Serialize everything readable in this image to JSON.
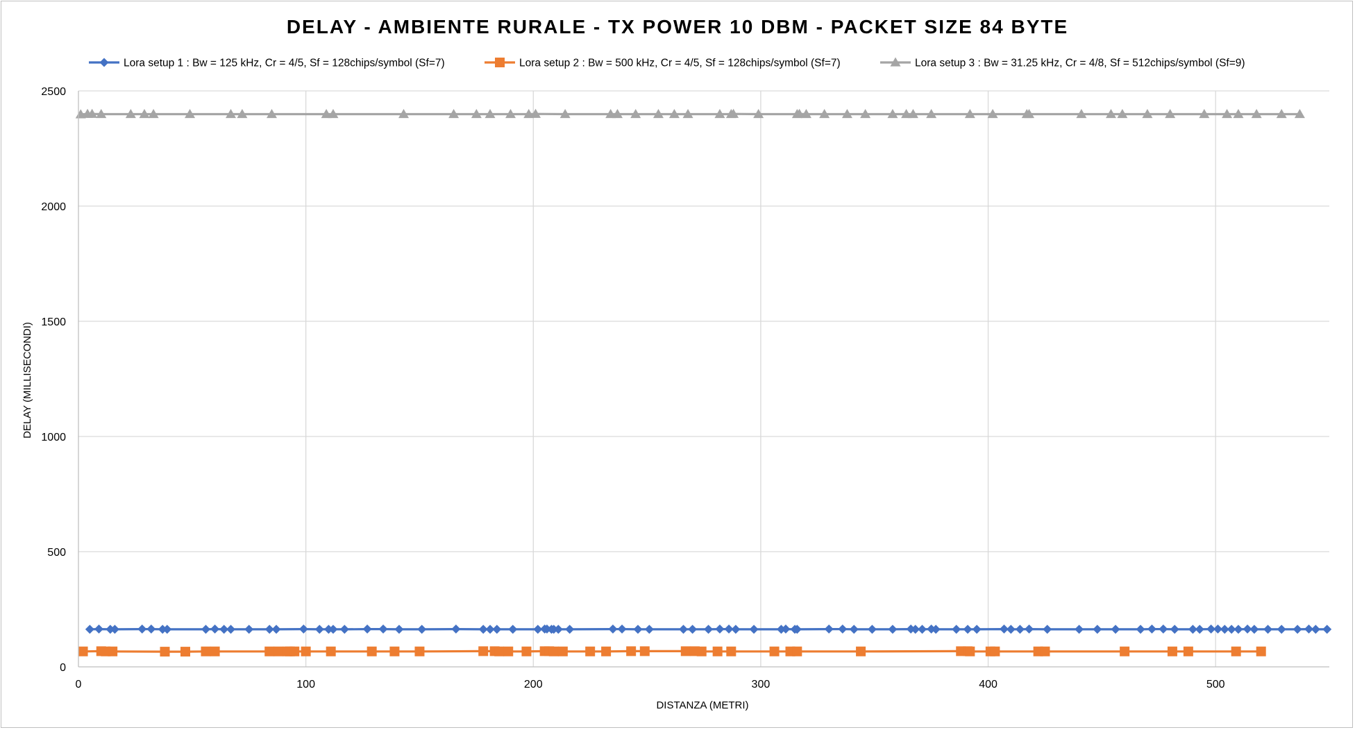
{
  "chart_data": {
    "type": "line",
    "title": "DELAY - AMBIENTE RURALE - TX POWER 10 DBM - PACKET SIZE 84 BYTE",
    "xlabel": "DISTANZA (METRI)",
    "ylabel": "DELAY (MILLISECONDI)",
    "xlim": [
      0,
      550
    ],
    "ylim": [
      0,
      2500
    ],
    "xticks": [
      "0",
      "100",
      "200",
      "300",
      "400",
      "500"
    ],
    "yticks": [
      "0",
      "500",
      "1000",
      "1500",
      "2000",
      "2500"
    ],
    "grid": true,
    "legend_position": "top",
    "series": [
      {
        "name": "Lora setup 1 : Bw = 125 kHz, Cr = 4/5, Sf = 128chips/symbol (Sf=7)",
        "color": "#4472c4",
        "marker": "diamond",
        "x": [
          5,
          9,
          14,
          16,
          28,
          32,
          37,
          39,
          56,
          60,
          64,
          67,
          75,
          84,
          87,
          99,
          106,
          110,
          112,
          117,
          127,
          134,
          141,
          151,
          166,
          178,
          181,
          184,
          191,
          202,
          205,
          206,
          208,
          209,
          211,
          216,
          235,
          239,
          246,
          251,
          266,
          270,
          277,
          282,
          286,
          289,
          297,
          309,
          311,
          315,
          316,
          330,
          336,
          341,
          349,
          358,
          366,
          368,
          371,
          375,
          377,
          386,
          391,
          395,
          407,
          410,
          414,
          418,
          426,
          440,
          448,
          456,
          467,
          472,
          477,
          482,
          490,
          493,
          498,
          501,
          504,
          507,
          510,
          514,
          517,
          523,
          529,
          536,
          541,
          544,
          549
        ],
        "y": [
          163,
          164,
          163,
          163,
          164,
          164,
          163,
          163,
          163,
          164,
          163,
          163,
          163,
          163,
          163,
          164,
          163,
          163,
          163,
          163,
          164,
          164,
          163,
          163,
          164,
          163,
          163,
          163,
          163,
          163,
          164,
          164,
          163,
          163,
          163,
          163,
          164,
          164,
          163,
          163,
          163,
          163,
          163,
          164,
          164,
          163,
          163,
          163,
          164,
          163,
          163,
          164,
          164,
          163,
          163,
          163,
          164,
          163,
          163,
          164,
          163,
          163,
          163,
          163,
          164,
          163,
          163,
          164,
          163,
          163,
          163,
          163,
          163,
          164,
          164,
          163,
          163,
          163,
          164,
          164,
          163,
          163,
          163,
          164,
          163,
          163,
          163,
          163,
          164,
          163,
          163
        ]
      },
      {
        "name": "Lora setup 2 : Bw = 500 kHz, Cr = 4/5, Sf = 128chips/symbol (Sf=7)",
        "color": "#ed7d31",
        "marker": "square",
        "x": [
          2,
          10,
          12,
          15,
          38,
          47,
          56,
          60,
          84,
          88,
          92,
          93,
          95,
          100,
          111,
          129,
          139,
          150,
          178,
          183,
          185,
          189,
          197,
          205,
          207,
          209,
          213,
          225,
          232,
          243,
          249,
          267,
          271,
          274,
          281,
          287,
          306,
          313,
          316,
          344,
          388,
          391,
          392,
          401,
          403,
          422,
          425,
          460,
          481,
          488,
          509,
          520
        ],
        "y": [
          67,
          68,
          67,
          67,
          66,
          66,
          67,
          67,
          67,
          67,
          67,
          67,
          67,
          67,
          67,
          67,
          67,
          67,
          68,
          68,
          67,
          67,
          67,
          68,
          68,
          67,
          67,
          67,
          67,
          68,
          68,
          68,
          68,
          67,
          67,
          67,
          67,
          67,
          67,
          67,
          68,
          68,
          67,
          67,
          67,
          67,
          67,
          67,
          67,
          67,
          67,
          67
        ]
      },
      {
        "name": "Lora setup 3 : Bw = 31.25 kHz, Cr = 4/8, Sf = 512chips/symbol (Sf=9)",
        "color": "#a5a5a5",
        "marker": "triangle",
        "x": [
          1,
          4,
          6,
          10,
          23,
          29,
          33,
          49,
          67,
          72,
          85,
          109,
          112,
          143,
          165,
          175,
          181,
          190,
          198,
          201,
          214,
          234,
          237,
          245,
          255,
          262,
          268,
          282,
          287,
          288,
          299,
          316,
          317,
          320,
          328,
          338,
          346,
          358,
          364,
          367,
          375,
          392,
          402,
          417,
          418,
          441,
          454,
          459,
          470,
          480,
          495,
          505,
          510,
          518,
          529,
          537
        ],
        "y": [
          2398,
          2400,
          2400,
          2399,
          2399,
          2399,
          2399,
          2399,
          2399,
          2399,
          2399,
          2399,
          2399,
          2399,
          2399,
          2399,
          2399,
          2399,
          2399,
          2400,
          2399,
          2399,
          2399,
          2399,
          2399,
          2399,
          2399,
          2399,
          2399,
          2400,
          2399,
          2399,
          2400,
          2399,
          2399,
          2399,
          2399,
          2399,
          2399,
          2399,
          2399,
          2399,
          2399,
          2399,
          2399,
          2399,
          2399,
          2399,
          2399,
          2399,
          2399,
          2399,
          2399,
          2399,
          2399,
          2399
        ]
      }
    ]
  }
}
